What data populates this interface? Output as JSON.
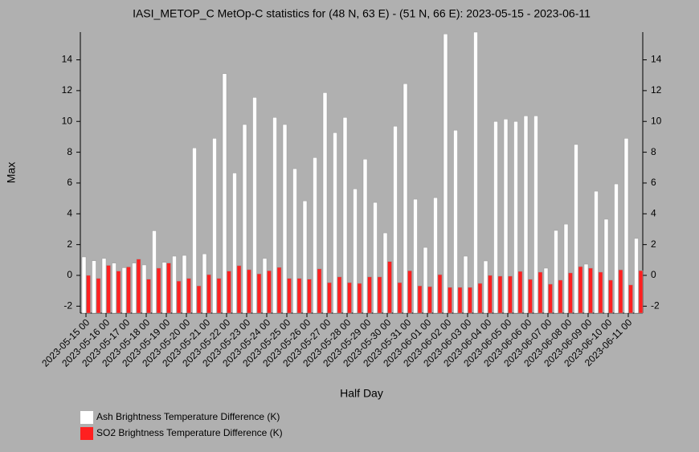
{
  "chart_data": {
    "type": "bar",
    "title": "IASI_METOP_C MetOp-C statistics for (48 N, 63 E) - (51 N, 66 E): 2023-05-15 - 2023-06-11",
    "xlabel": "Half Day",
    "ylabel": "Max",
    "categories": [
      "2023-05-15 00",
      null,
      "2023-05-16 00",
      null,
      "2023-05-17 00",
      null,
      "2023-05-18 00",
      null,
      "2023-05-19 00",
      null,
      "2023-05-20 00",
      null,
      "2023-05-21 00",
      null,
      "2023-05-22 00",
      null,
      "2023-05-23 00",
      null,
      "2023-05-24 00",
      null,
      "2023-05-25 00",
      null,
      "2023-05-26 00",
      null,
      "2023-05-27 00",
      null,
      "2023-05-28 00",
      null,
      "2023-05-29 00",
      null,
      "2023-05-30 00",
      null,
      "2023-05-31 00",
      null,
      "2023-06-01 00",
      null,
      "2023-06-02 00",
      null,
      "2023-06-03 00",
      null,
      "2023-06-04 00",
      null,
      "2023-06-05 00",
      null,
      "2023-06-06 00",
      null,
      "2023-06-07 00",
      null,
      "2023-06-08 00",
      null,
      "2023-06-09 00",
      null,
      "2023-06-10 00",
      null,
      "2023-06-11 00",
      null
    ],
    "series": [
      {
        "name": "Ash Brightness Temperature Difference (K)",
        "color": "#ffffff",
        "values": [
          1.2,
          0.95,
          1.1,
          0.8,
          0.5,
          0.8,
          0.68,
          2.9,
          0.85,
          1.25,
          1.3,
          8.28,
          1.4,
          8.9,
          13.1,
          6.65,
          9.8,
          11.56,
          1.1,
          10.26,
          9.8,
          6.93,
          4.84,
          7.65,
          11.87,
          9.27,
          10.26,
          5.62,
          7.55,
          4.74,
          2.76,
          9.69,
          12.45,
          4.95,
          1.82,
          5.05,
          15.68,
          9.43,
          1.25,
          15.8,
          0.94,
          10.0,
          10.15,
          10.0,
          10.36,
          10.36,
          0.47,
          2.92,
          3.33,
          8.5,
          0.73,
          5.47,
          3.65,
          5.94,
          8.9,
          2.4
        ]
      },
      {
        "name": "SO2 Brightness Temperature Difference (K)",
        "color": "#ff2020",
        "values": [
          0.0,
          -0.2,
          0.65,
          0.28,
          0.55,
          1.05,
          -0.25,
          0.47,
          0.8,
          -0.37,
          -0.2,
          -0.68,
          0.05,
          -0.2,
          0.28,
          0.63,
          0.37,
          0.1,
          0.3,
          0.52,
          -0.2,
          -0.2,
          -0.25,
          0.42,
          -0.47,
          -0.1,
          -0.47,
          -0.52,
          -0.1,
          -0.1,
          0.9,
          -0.47,
          0.3,
          -0.68,
          -0.73,
          0.05,
          -0.78,
          -0.78,
          -0.78,
          -0.52,
          0.0,
          -0.05,
          -0.05,
          0.26,
          -0.26,
          0.21,
          -0.57,
          -0.31,
          0.16,
          0.57,
          0.47,
          0.21,
          -0.31,
          0.36,
          -0.62,
          0.31
        ]
      }
    ],
    "ylim": [
      -2.45,
      15.8
    ],
    "yticks": [
      -2,
      0,
      2,
      4,
      6,
      8,
      10,
      12,
      14
    ]
  }
}
